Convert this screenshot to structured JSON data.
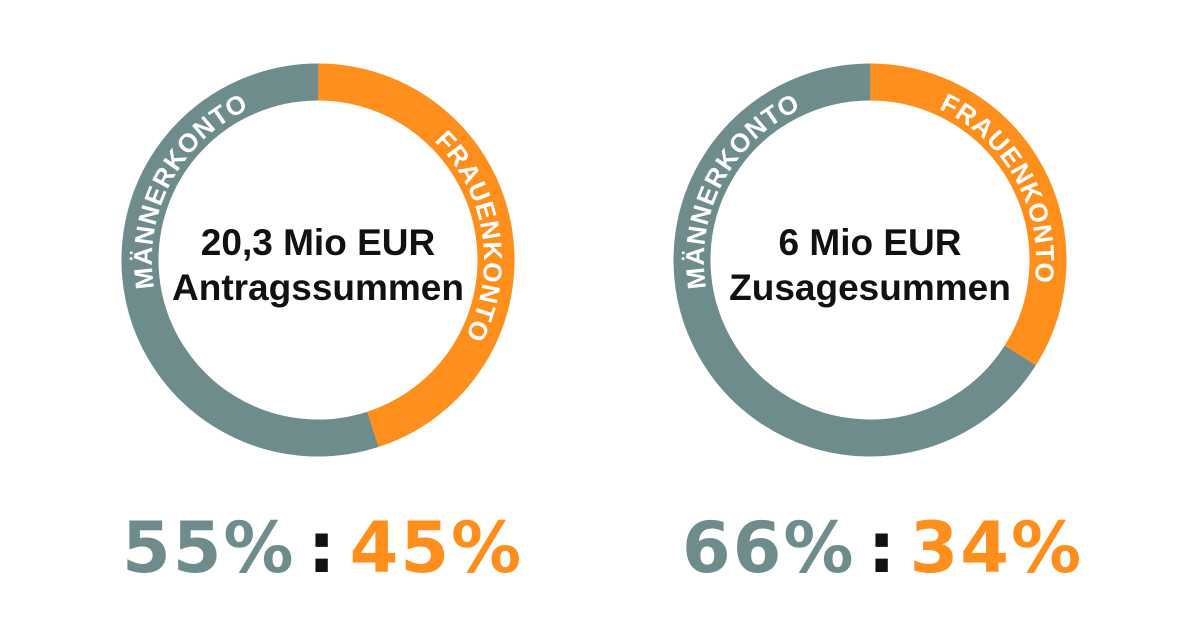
{
  "colors": {
    "men": "#6f8c8c",
    "women": "#ff8f1c",
    "text": "#111111",
    "ring_text": "#ffffff"
  },
  "chart_data": [
    {
      "type": "pie",
      "donut": true,
      "center_lines": [
        "20,3 Mio EUR",
        "Antragssummen"
      ],
      "labels": [
        "MÄNNERKONTO",
        "FRAUENKONTO"
      ],
      "values": [
        55,
        45
      ],
      "ratio": {
        "men": "55%",
        "separator": ":",
        "women": "45%"
      }
    },
    {
      "type": "pie",
      "donut": true,
      "center_lines": [
        "6 Mio EUR",
        "Zusagesummen"
      ],
      "labels": [
        "MÄNNERKONTO",
        "FRAUENKONTO"
      ],
      "values": [
        66,
        34
      ],
      "ratio": {
        "men": "66%",
        "separator": ":",
        "women": "34%"
      }
    }
  ]
}
